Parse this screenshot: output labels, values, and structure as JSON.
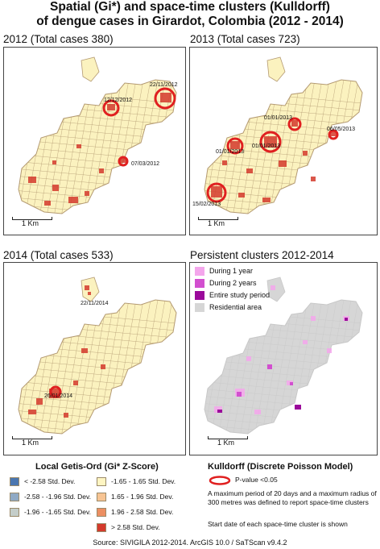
{
  "title": {
    "line1": "Spatial (Gi*) and space-time clusters (Kulldorff)",
    "line2": "of dengue cases in Girardot, Colombia (2012 - 2014)"
  },
  "panels": {
    "p2012": {
      "label": "2012 (Total cases 380)",
      "dates": [
        "12/12/2012",
        "22/11/2012",
        "07/03/2012"
      ],
      "scale": "1 Km"
    },
    "p2013": {
      "label": "2013 (Total cases 723)",
      "dates": [
        "01/01/2013",
        "06/05/2013",
        "01/01/2013",
        "01/01/2013",
        "15/02/2013"
      ],
      "scale": "1 Km"
    },
    "p2014": {
      "label": "2014 (Total cases 533)",
      "dates": [
        "22/11/2014",
        "26/01/2014"
      ],
      "scale": "1 Km"
    },
    "persistent": {
      "label": "Persistent clusters 2012-2014",
      "scale": "1 Km",
      "legend": [
        "During 1 year",
        "During 2 years",
        "Entire study period",
        "Residential area"
      ],
      "legend_colors": [
        "#f4a6ec",
        "#d24fcf",
        "#9b0a9b",
        "#d6d6d6"
      ]
    }
  },
  "gi_legend": {
    "title": "Local Getis-Ord (Gi* Z-Score)",
    "items": [
      {
        "label": "< -2.58 Std. Dev.",
        "color": "#4a76b0"
      },
      {
        "label": "-2.58 - -1.96 Std. Dev.",
        "color": "#8fa9c4"
      },
      {
        "label": "-1.96 - -1.65 Std. Dev.",
        "color": "#c4cdc9"
      },
      {
        "label": "-1.65 - 1.65 Std. Dev.",
        "color": "#fef5c2"
      },
      {
        "label": "1.65 - 1.96 Std. Dev.",
        "color": "#f7c493"
      },
      {
        "label": "1.96 - 2.58 Std. Dev.",
        "color": "#ec8f62"
      },
      {
        "label": "> 2.58 Std. Dev.",
        "color": "#d43a2c"
      }
    ]
  },
  "kulldorff": {
    "title": "Kulldorff (Discrete Poisson Model)",
    "pvalue": "P-value <0.05",
    "note1": "A maximum period of 20 days and a maximum radius of 300 metres was defined to report space-time clusters",
    "note2": "Start date of each space-time cluster is shown",
    "circle_color": "#e02020"
  },
  "source": "Source: SIVIGILA 2012-2014. ArcGIS 10.0 / SaTScan v9.4.2",
  "colors": {
    "city_fill": "#fbf2bf",
    "city_stroke": "#b49a72",
    "hotspot": "#d43a2c",
    "residential": "#d6d6d6"
  }
}
